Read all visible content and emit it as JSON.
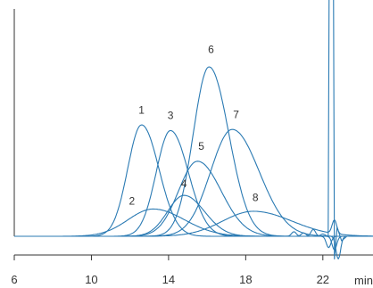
{
  "chart_data": {
    "type": "line",
    "title": "",
    "xlabel": "min",
    "ylabel": "",
    "xlim": [
      6,
      24.6
    ],
    "ylim": [
      0,
      100
    ],
    "x_ticks": [
      6,
      10,
      14,
      18,
      22
    ],
    "x_tick_labels": [
      "6",
      "10",
      "14",
      "18",
      "22"
    ],
    "grid": false,
    "legend": "none",
    "colors": {
      "trace": "#2a7ab3",
      "axis": "#333333"
    },
    "peak_labels": [
      {
        "text": "1",
        "x": 12.6,
        "y": 54.0
      },
      {
        "text": "2",
        "x": 12.1,
        "y": 14.0
      },
      {
        "text": "3",
        "x": 14.1,
        "y": 51.5
      },
      {
        "text": "4",
        "x": 14.8,
        "y": 21.5
      },
      {
        "text": "5",
        "x": 15.7,
        "y": 38.0
      },
      {
        "text": "6",
        "x": 16.2,
        "y": 80.5
      },
      {
        "text": "7",
        "x": 17.5,
        "y": 52.0
      },
      {
        "text": "8",
        "x": 18.5,
        "y": 15.5
      }
    ],
    "series": [
      {
        "peak_time": 12.6,
        "peak_height": 49.0,
        "width": 0.72,
        "tail_time": 20.5,
        "tail_height": 2.0
      },
      {
        "peak_time": 13.2,
        "peak_height": 12.0,
        "width": 1.3,
        "tail_time": 22.0,
        "tail_height": 1.0
      },
      {
        "peak_time": 14.1,
        "peak_height": 46.5,
        "width": 0.74,
        "tail_time": 21.0,
        "tail_height": 1.5
      },
      {
        "peak_time": 14.8,
        "peak_height": 18.0,
        "width": 0.85,
        "tail_time": 21.5,
        "tail_height": 3.0
      },
      {
        "peak_time": 15.5,
        "peak_height": 33.0,
        "width": 0.98,
        "tail_time": 22.3,
        "tail_height": -5.0
      },
      {
        "peak_time": 16.1,
        "peak_height": 74.5,
        "width": 0.82,
        "tail_time": 22.6,
        "tail_height": -6.0
      },
      {
        "peak_time": 17.3,
        "peak_height": 47.0,
        "width": 1.12,
        "tail_time": 22.8,
        "tail_height": -10.0
      },
      {
        "peak_time": 18.4,
        "peak_height": 11.0,
        "width": 1.6,
        "tail_time": 22.6,
        "tail_height": 6.0
      }
    ],
    "solvent_front": {
      "time": 22.6,
      "height_beyond_top": true
    }
  }
}
